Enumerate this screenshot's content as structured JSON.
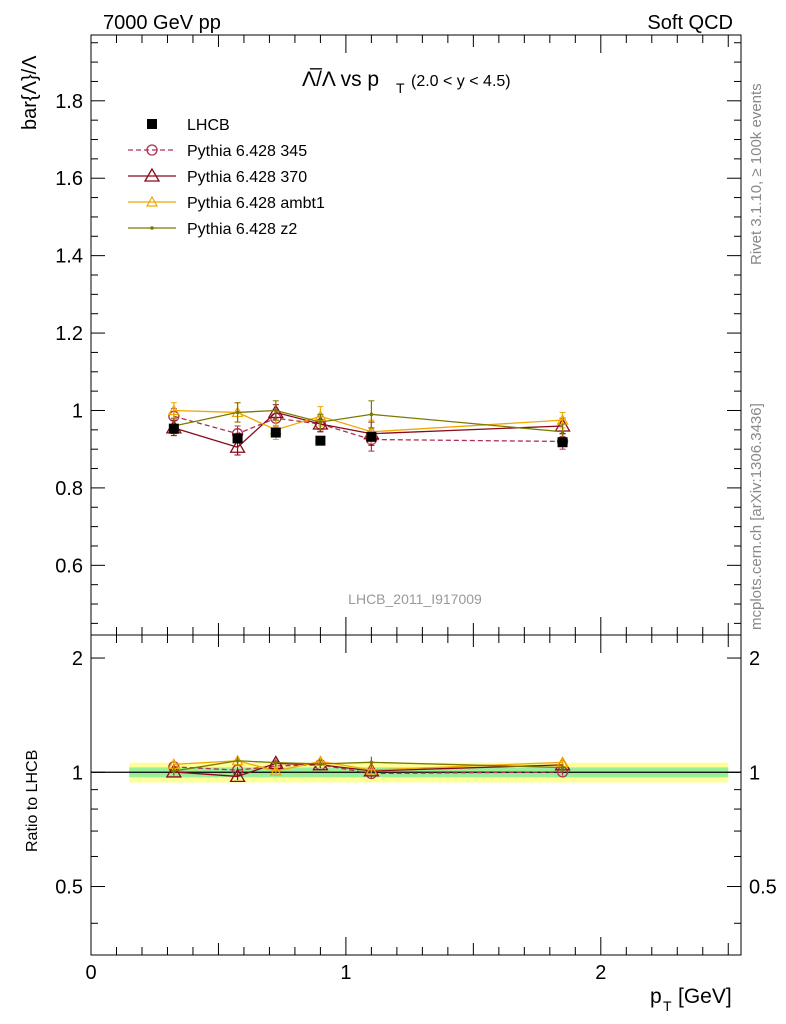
{
  "header": {
    "left": "7000 GeV pp",
    "right": "Soft QCD"
  },
  "side_labels": {
    "rivet": "Rivet 3.1.10, ≥ 100k events",
    "source": "mcplots.cern.ch [arXiv:1306.3436]"
  },
  "chart_data": {
    "type": "line",
    "title_main": "Λ̅/Λ vs p",
    "title_sub": "T",
    "title_range": "(2.0 < y < 4.5)",
    "ylabel": "bar{Λ}/Λ",
    "xlabel": "p",
    "xlabel_sub": "T",
    "xlabel_unit": "[GeV]",
    "ratio_ylabel": "Ratio to LHCB",
    "analysis_id": "LHCB_2011_I917009",
    "xlim": [
      0,
      2.55
    ],
    "ylim": [
      0.42,
      1.97
    ],
    "ratio_ylim": [
      0.33,
      2.3
    ],
    "x_ticks": [
      0,
      1,
      2
    ],
    "x_tick_labels": [
      "0",
      "1",
      "2"
    ],
    "y_ticks": [
      0.6,
      0.8,
      1.0,
      1.2,
      1.4,
      1.6,
      1.8
    ],
    "y_tick_labels": [
      "0.6",
      "0.8",
      "1",
      "1.2",
      "1.4",
      "1.6",
      "1.8"
    ],
    "ratio_ticks": [
      0.5,
      1,
      2
    ],
    "ratio_tick_labels": [
      "0.5",
      "1",
      "2"
    ],
    "x": [
      0.325,
      0.575,
      0.725,
      0.9,
      1.1,
      1.85
    ],
    "data": {
      "name": "LHCB",
      "values": [
        0.953,
        0.928,
        0.943,
        0.922,
        0.932,
        0.918
      ],
      "band_inner": 0.03,
      "band_outer": 0.06
    },
    "series": [
      {
        "name": "Pythia 6.428 345",
        "color": "#b03050",
        "dash": true,
        "marker": "circle",
        "values": [
          0.985,
          0.94,
          0.98,
          0.965,
          0.925,
          0.92
        ],
        "errors": [
          0.02,
          0.02,
          0.02,
          0.02,
          0.03,
          0.02
        ]
      },
      {
        "name": "Pythia 6.428 370",
        "color": "#8b0a1a",
        "dash": false,
        "marker": "triangle",
        "values": [
          0.955,
          0.905,
          0.995,
          0.965,
          0.94,
          0.96
        ],
        "errors": [
          0.02,
          0.02,
          0.02,
          0.02,
          0.03,
          0.02
        ]
      },
      {
        "name": "Pythia 6.428 ambt1",
        "color": "#f0a800",
        "dash": false,
        "marker": "triangle-small",
        "values": [
          1.0,
          0.995,
          0.95,
          0.985,
          0.945,
          0.975
        ],
        "errors": [
          0.02,
          0.025,
          0.025,
          0.025,
          0.03,
          0.02
        ]
      },
      {
        "name": "Pythia 6.428 z2",
        "color": "#7a7a00",
        "dash": false,
        "marker": "dot",
        "values": [
          0.96,
          0.995,
          1.0,
          0.97,
          0.99,
          0.945
        ],
        "errors": [
          0.02,
          0.025,
          0.025,
          0.02,
          0.035,
          0.02
        ]
      }
    ]
  }
}
